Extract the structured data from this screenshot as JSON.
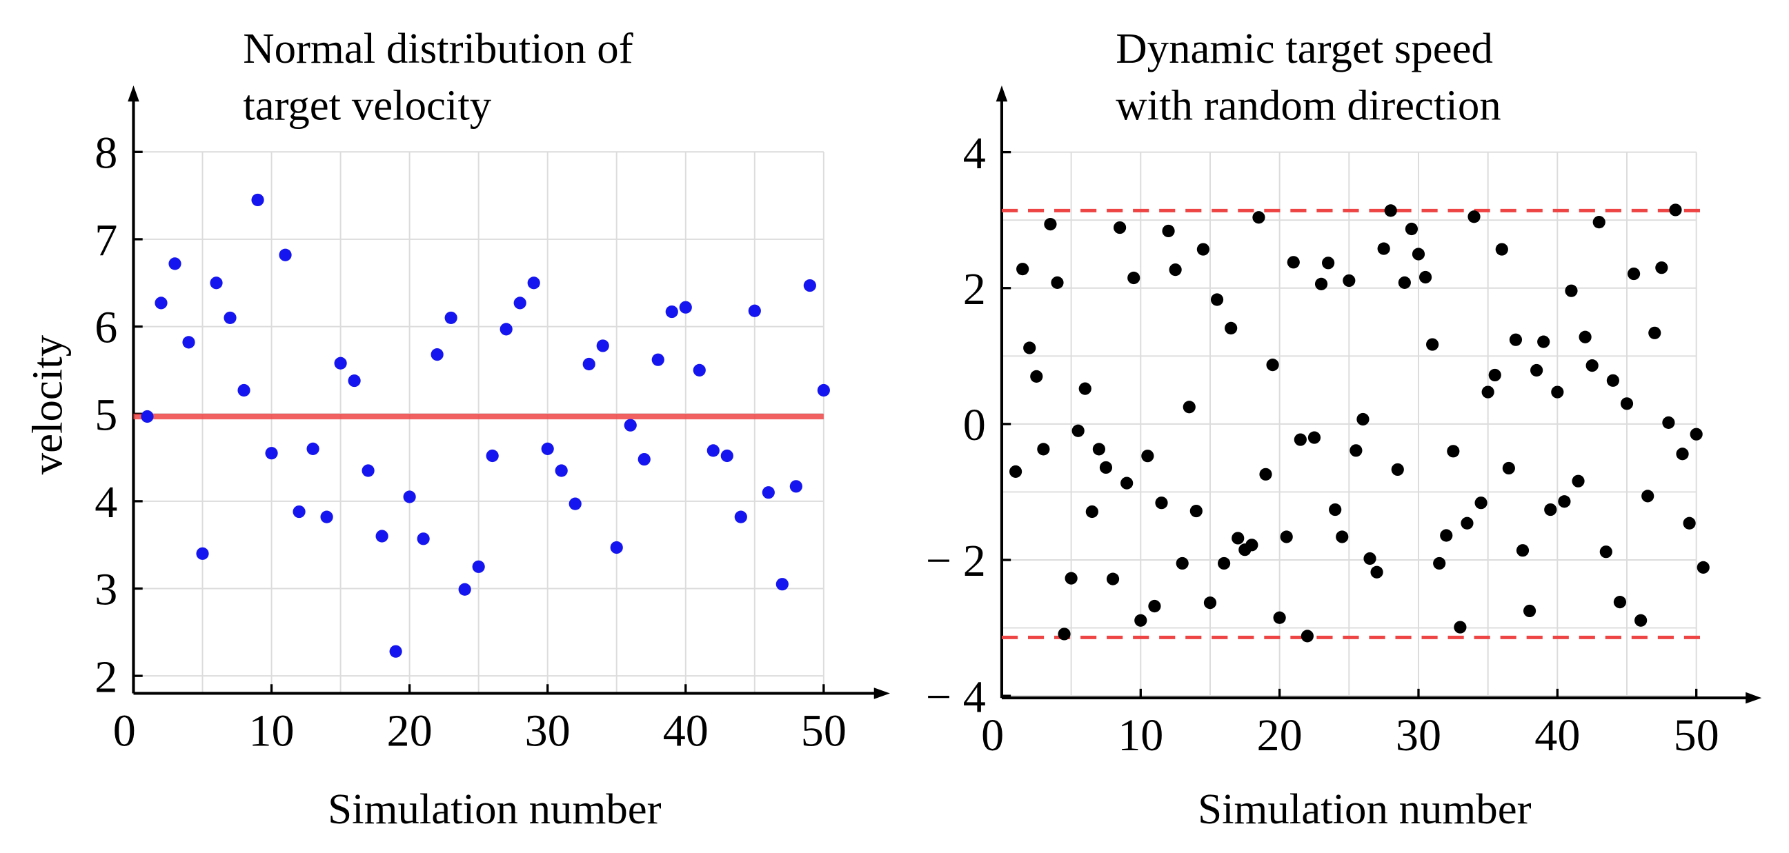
{
  "chart_data": [
    {
      "type": "scatter",
      "title": [
        "Normal distribution of",
        "target velocity"
      ],
      "xlabel": "Simulation number",
      "ylabel": "velocity",
      "x": [
        1,
        2,
        3,
        4,
        5,
        6,
        7,
        8,
        9,
        10,
        11,
        12,
        13,
        14,
        15,
        16,
        17,
        18,
        19,
        20,
        21,
        22,
        23,
        24,
        25,
        26,
        27,
        28,
        29,
        30,
        31,
        32,
        33,
        34,
        35,
        36,
        37,
        38,
        39,
        40,
        41,
        42,
        43,
        44,
        45,
        46,
        47,
        48,
        49,
        50
      ],
      "values": [
        4.97,
        6.27,
        6.72,
        5.82,
        3.4,
        6.5,
        6.1,
        5.27,
        7.45,
        4.55,
        6.82,
        3.88,
        4.6,
        3.82,
        5.58,
        5.38,
        4.35,
        3.6,
        2.28,
        4.05,
        3.57,
        5.68,
        6.1,
        2.99,
        3.25,
        4.52,
        5.97,
        6.27,
        6.5,
        4.6,
        4.35,
        3.97,
        5.57,
        5.78,
        3.47,
        4.87,
        4.48,
        5.62,
        6.17,
        6.22,
        5.5,
        4.58,
        4.52,
        3.82,
        6.18,
        4.1,
        3.05,
        4.17,
        6.47,
        5.27
      ],
      "color": "#1515f0",
      "hlines": [
        {
          "value": 4.97,
          "color": "#f04545",
          "style": "solid"
        }
      ],
      "xlim": [
        0,
        54.8
      ],
      "ylim": [
        1.8,
        8.76
      ],
      "xticks": [
        0,
        10,
        20,
        30,
        40,
        50
      ],
      "yticks": [
        2,
        3,
        4,
        5,
        6,
        7,
        8
      ],
      "xgrid": [
        5,
        10,
        15,
        20,
        25,
        30,
        35,
        40,
        45,
        50
      ],
      "grid": true
    },
    {
      "type": "scatter",
      "title": [
        "Dynamic target speed",
        "with random direction"
      ],
      "xlabel": "Simulation number",
      "x": [
        1,
        1.5,
        2,
        2.5,
        3,
        3.5,
        4,
        4.5,
        5,
        5.5,
        6,
        6.5,
        7,
        7.5,
        8,
        8.5,
        9,
        9.5,
        10,
        10.5,
        11,
        11.5,
        12,
        12.5,
        13,
        13.5,
        14,
        14.5,
        15,
        15.5,
        16,
        16.5,
        17,
        17.5,
        18,
        18.5,
        19,
        19.5,
        20,
        20.5,
        21,
        21.5,
        22,
        22.5,
        23,
        23.5,
        24,
        24.5,
        25,
        25.5,
        26,
        26.5,
        27,
        27.5,
        28,
        28.5,
        29,
        29.5,
        30,
        30.5,
        31,
        31.5,
        32,
        32.5,
        33,
        33.5,
        34,
        34.5,
        35,
        35.5,
        36,
        36.5,
        37,
        37.5,
        38,
        38.5,
        39,
        39.5,
        40,
        40.5,
        41,
        41.5,
        42,
        42.5,
        43,
        43.5,
        44,
        44.5,
        45,
        45.5,
        46,
        46.5,
        47,
        47.5,
        48,
        48.5,
        49,
        49.5,
        50,
        50.5
      ],
      "values": [
        -0.7,
        2.28,
        1.12,
        0.7,
        -0.37,
        2.94,
        2.08,
        -3.09,
        -2.27,
        -0.1,
        0.52,
        -1.29,
        -0.37,
        -0.64,
        -2.28,
        2.89,
        -0.87,
        2.15,
        -2.89,
        -0.47,
        -2.68,
        -1.16,
        2.84,
        2.27,
        -2.05,
        0.25,
        -1.28,
        2.57,
        -2.63,
        1.83,
        -2.05,
        1.41,
        -1.68,
        -1.85,
        -1.78,
        3.04,
        -0.74,
        0.87,
        -2.85,
        -1.66,
        2.38,
        -0.23,
        -3.12,
        -0.2,
        2.06,
        2.37,
        -1.26,
        -1.66,
        2.11,
        -0.39,
        0.07,
        -1.98,
        -2.18,
        2.58,
        3.14,
        -0.67,
        2.08,
        2.87,
        2.5,
        2.16,
        1.17,
        -2.05,
        -1.64,
        -0.4,
        -2.99,
        -1.46,
        3.05,
        -1.16,
        0.47,
        0.72,
        2.57,
        -0.65,
        1.24,
        -1.86,
        -2.75,
        0.79,
        1.21,
        -1.26,
        0.47,
        -1.14,
        1.96,
        -0.84,
        1.28,
        0.86,
        2.97,
        -1.88,
        0.64,
        -2.62,
        0.3,
        2.21,
        -2.89,
        -1.06,
        1.34,
        2.3,
        0.02,
        3.15,
        -0.44,
        -1.46,
        -0.15,
        -2.11
      ],
      "color": "#000000",
      "hlines": [
        {
          "value": 3.14,
          "color": "#ee4444",
          "style": "dashed"
        },
        {
          "value": -3.14,
          "color": "#ee4444",
          "style": "dashed"
        }
      ],
      "xlim": [
        0,
        54.7
      ],
      "ylim": [
        -4.03,
        4.98
      ],
      "xticks": [
        0,
        10,
        20,
        30,
        40,
        50
      ],
      "yticks": [
        {
          "value": -4,
          "label": "− 4"
        },
        {
          "value": -2,
          "label": "− 2"
        },
        0,
        2,
        4
      ],
      "ygrid": [
        -4,
        -3,
        -2,
        -1,
        0,
        1,
        2,
        3,
        4
      ],
      "xgrid": [
        5,
        10,
        15,
        20,
        25,
        30,
        35,
        40,
        45,
        50
      ],
      "grid": true
    }
  ]
}
